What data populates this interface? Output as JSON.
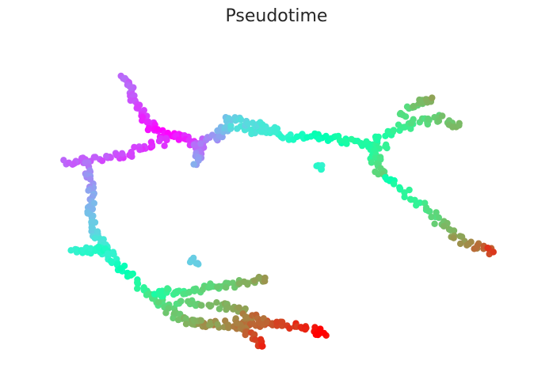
{
  "chart_data": {
    "type": "scatter",
    "title": "Pseudotime",
    "xlabel": "",
    "ylabel": "",
    "axes_visible": false,
    "grid": false,
    "legend": "none",
    "color_map": "rainbow",
    "color_range": [
      0,
      1
    ],
    "xlim": [
      0,
      100
    ],
    "ylim": [
      0,
      100
    ],
    "branches": [
      {
        "points": [
          [
            19.0,
            90.0
          ],
          [
            19.5,
            88.0
          ],
          [
            20.5,
            85.0
          ],
          [
            21.5,
            82.0
          ],
          [
            22.5,
            79.0
          ],
          [
            23.5,
            76.5
          ],
          [
            25.0,
            74.0
          ],
          [
            27.0,
            72.5
          ]
        ],
        "t": [
          0.14,
          0.13,
          0.11,
          0.09,
          0.07,
          0.05,
          0.03,
          0.01
        ]
      },
      {
        "points": [
          [
            27.0,
            72.5
          ],
          [
            29.0,
            72.0
          ],
          [
            31.0,
            71.5
          ],
          [
            32.5,
            70.5
          ],
          [
            33.5,
            69.5
          ]
        ],
        "t": [
          0.01,
          0.02,
          0.03,
          0.06,
          0.08
        ]
      },
      {
        "points": [
          [
            27.5,
            71.0
          ],
          [
            24.5,
            69.5
          ],
          [
            22.0,
            68.0
          ],
          [
            18.5,
            66.5
          ],
          [
            15.5,
            65.5
          ],
          [
            12.0,
            64.5
          ],
          [
            9.0,
            64.5
          ],
          [
            6.5,
            64.8
          ]
        ],
        "t": [
          0.05,
          0.06,
          0.08,
          0.09,
          0.1,
          0.11,
          0.12,
          0.13
        ]
      },
      {
        "points": [
          [
            33.5,
            70.0
          ],
          [
            34.5,
            68.0
          ],
          [
            33.5,
            66.0
          ],
          [
            33.0,
            63.5
          ]
        ],
        "t": [
          0.1,
          0.14,
          0.19,
          0.24
        ]
      },
      {
        "points": [
          [
            33.5,
            70.0
          ],
          [
            35.5,
            71.0
          ],
          [
            38.0,
            72.0
          ],
          [
            39.0,
            73.5
          ],
          [
            40.5,
            74.5
          ]
        ],
        "t": [
          0.12,
          0.17,
          0.21,
          0.26,
          0.29
        ]
      },
      {
        "points": [
          [
            40.5,
            74.5
          ],
          [
            44.0,
            74.5
          ],
          [
            47.0,
            73.5
          ],
          [
            50.5,
            72.5
          ],
          [
            54.0,
            72.0
          ]
        ],
        "t": [
          0.32,
          0.35,
          0.37,
          0.4,
          0.45
        ]
      },
      {
        "points": [
          [
            39.5,
            78.0
          ],
          [
            41.5,
            77.0
          ],
          [
            44.0,
            76.0
          ],
          [
            47.0,
            75.0
          ],
          [
            50.0,
            74.5
          ]
        ],
        "t": [
          0.28,
          0.31,
          0.33,
          0.35,
          0.38
        ]
      },
      {
        "points": [
          [
            54.0,
            72.0
          ],
          [
            58.0,
            72.0
          ],
          [
            61.0,
            71.5
          ],
          [
            64.0,
            70.5
          ],
          [
            67.0,
            70.0
          ],
          [
            70.0,
            69.5
          ],
          [
            72.0,
            69.0
          ]
        ],
        "t": [
          0.46,
          0.49,
          0.52,
          0.55,
          0.56,
          0.58,
          0.6
        ]
      },
      {
        "points": [
          [
            70.0,
            72.0
          ],
          [
            73.0,
            73.5
          ],
          [
            76.0,
            75.0
          ],
          [
            79.0,
            76.5
          ],
          [
            82.0,
            78.0
          ],
          [
            85.0,
            77.0
          ],
          [
            87.0,
            75.5
          ]
        ],
        "t": [
          0.55,
          0.58,
          0.62,
          0.66,
          0.7,
          0.72,
          0.74
        ]
      },
      {
        "points": [
          [
            75.0,
            79.0
          ],
          [
            77.5,
            81.0
          ],
          [
            79.5,
            82.5
          ],
          [
            81.5,
            84.0
          ]
        ],
        "t": [
          0.66,
          0.7,
          0.74,
          0.78
        ]
      },
      {
        "points": [
          [
            69.0,
            68.0
          ],
          [
            70.0,
            65.5
          ],
          [
            70.5,
            63.0
          ],
          [
            71.5,
            60.5
          ]
        ],
        "t": [
          0.56,
          0.62,
          0.66,
          0.7
        ]
      },
      {
        "points": [
          [
            72.0,
            59.5
          ],
          [
            75.0,
            56.0
          ],
          [
            78.0,
            52.5
          ],
          [
            81.0,
            49.0
          ],
          [
            83.5,
            45.0
          ],
          [
            86.0,
            41.5
          ],
          [
            89.0,
            39.0
          ],
          [
            92.0,
            37.5
          ],
          [
            94.0,
            36.5
          ]
        ],
        "t": [
          0.52,
          0.56,
          0.6,
          0.66,
          0.72,
          0.78,
          0.82,
          0.87,
          0.93
        ]
      },
      {
        "points": [
          [
            58.0,
            63.0
          ],
          [
            59.0,
            62.0
          ]
        ],
        "t": [
          0.4,
          0.42
        ]
      },
      {
        "points": [
          [
            11.5,
            64.0
          ],
          [
            11.8,
            60.0
          ],
          [
            12.0,
            56.0
          ],
          [
            12.2,
            52.0
          ],
          [
            12.0,
            48.0
          ],
          [
            12.3,
            44.0
          ],
          [
            13.0,
            41.0
          ],
          [
            14.5,
            38.5
          ],
          [
            15.5,
            36.0
          ]
        ],
        "t": [
          0.16,
          0.18,
          0.21,
          0.24,
          0.27,
          0.3,
          0.33,
          0.37,
          0.4
        ]
      },
      {
        "points": [
          [
            8.0,
            37.0
          ],
          [
            10.5,
            37.0
          ],
          [
            13.0,
            37.2
          ],
          [
            15.0,
            37.5
          ]
        ],
        "t": [
          0.4,
          0.41,
          0.43,
          0.44
        ]
      },
      {
        "points": [
          [
            15.5,
            36.0
          ],
          [
            17.5,
            33.0
          ],
          [
            19.5,
            30.0
          ],
          [
            21.5,
            27.0
          ],
          [
            23.5,
            24.5
          ],
          [
            25.0,
            22.0
          ],
          [
            27.0,
            19.5
          ],
          [
            29.0,
            17.5
          ],
          [
            31.0,
            16.0
          ],
          [
            33.0,
            15.0
          ],
          [
            35.0,
            14.5
          ],
          [
            37.0,
            14.0
          ]
        ],
        "t": [
          0.4,
          0.45,
          0.5,
          0.56,
          0.6,
          0.64,
          0.68,
          0.72,
          0.74,
          0.76,
          0.8,
          0.84
        ]
      },
      {
        "points": [
          [
            25.0,
            23.5
          ],
          [
            27.5,
            24.0
          ],
          [
            30.0,
            24.5
          ],
          [
            33.0,
            25.0
          ],
          [
            36.0,
            25.5
          ],
          [
            39.0,
            26.0
          ],
          [
            42.0,
            26.5
          ],
          [
            45.0,
            27.5
          ],
          [
            47.5,
            28.5
          ]
        ],
        "t": [
          0.55,
          0.6,
          0.63,
          0.66,
          0.68,
          0.7,
          0.73,
          0.76,
          0.8
        ]
      },
      {
        "points": [
          [
            29.5,
            20.5
          ],
          [
            33.0,
            20.5
          ],
          [
            36.5,
            20.0
          ],
          [
            40.0,
            19.5
          ],
          [
            43.5,
            19.0
          ]
        ],
        "t": [
          0.66,
          0.7,
          0.74,
          0.76,
          0.78
        ]
      },
      {
        "points": [
          [
            33.0,
            15.5
          ],
          [
            36.5,
            14.5
          ],
          [
            40.0,
            14.0
          ],
          [
            43.5,
            14.0
          ],
          [
            46.5,
            14.2
          ],
          [
            48.5,
            14.5
          ]
        ],
        "t": [
          0.74,
          0.78,
          0.82,
          0.86,
          0.88,
          0.9
        ]
      },
      {
        "points": [
          [
            43.0,
            17.5
          ],
          [
            46.0,
            16.0
          ],
          [
            49.0,
            14.5
          ],
          [
            52.0,
            13.8
          ],
          [
            55.0,
            13.0
          ],
          [
            57.5,
            12.0
          ],
          [
            59.5,
            11.5
          ]
        ],
        "t": [
          0.84,
          0.86,
          0.89,
          0.92,
          0.95,
          0.98,
          1.0
        ]
      },
      {
        "points": [
          [
            41.5,
            15.5
          ],
          [
            43.5,
            12.0
          ],
          [
            45.5,
            9.5
          ],
          [
            47.0,
            7.5
          ]
        ],
        "t": [
          0.82,
          0.86,
          0.92,
          0.96
        ]
      },
      {
        "points": [
          [
            32.5,
            34.0
          ],
          [
            33.5,
            33.0
          ]
        ],
        "t": [
          0.28,
          0.3
        ]
      }
    ]
  }
}
